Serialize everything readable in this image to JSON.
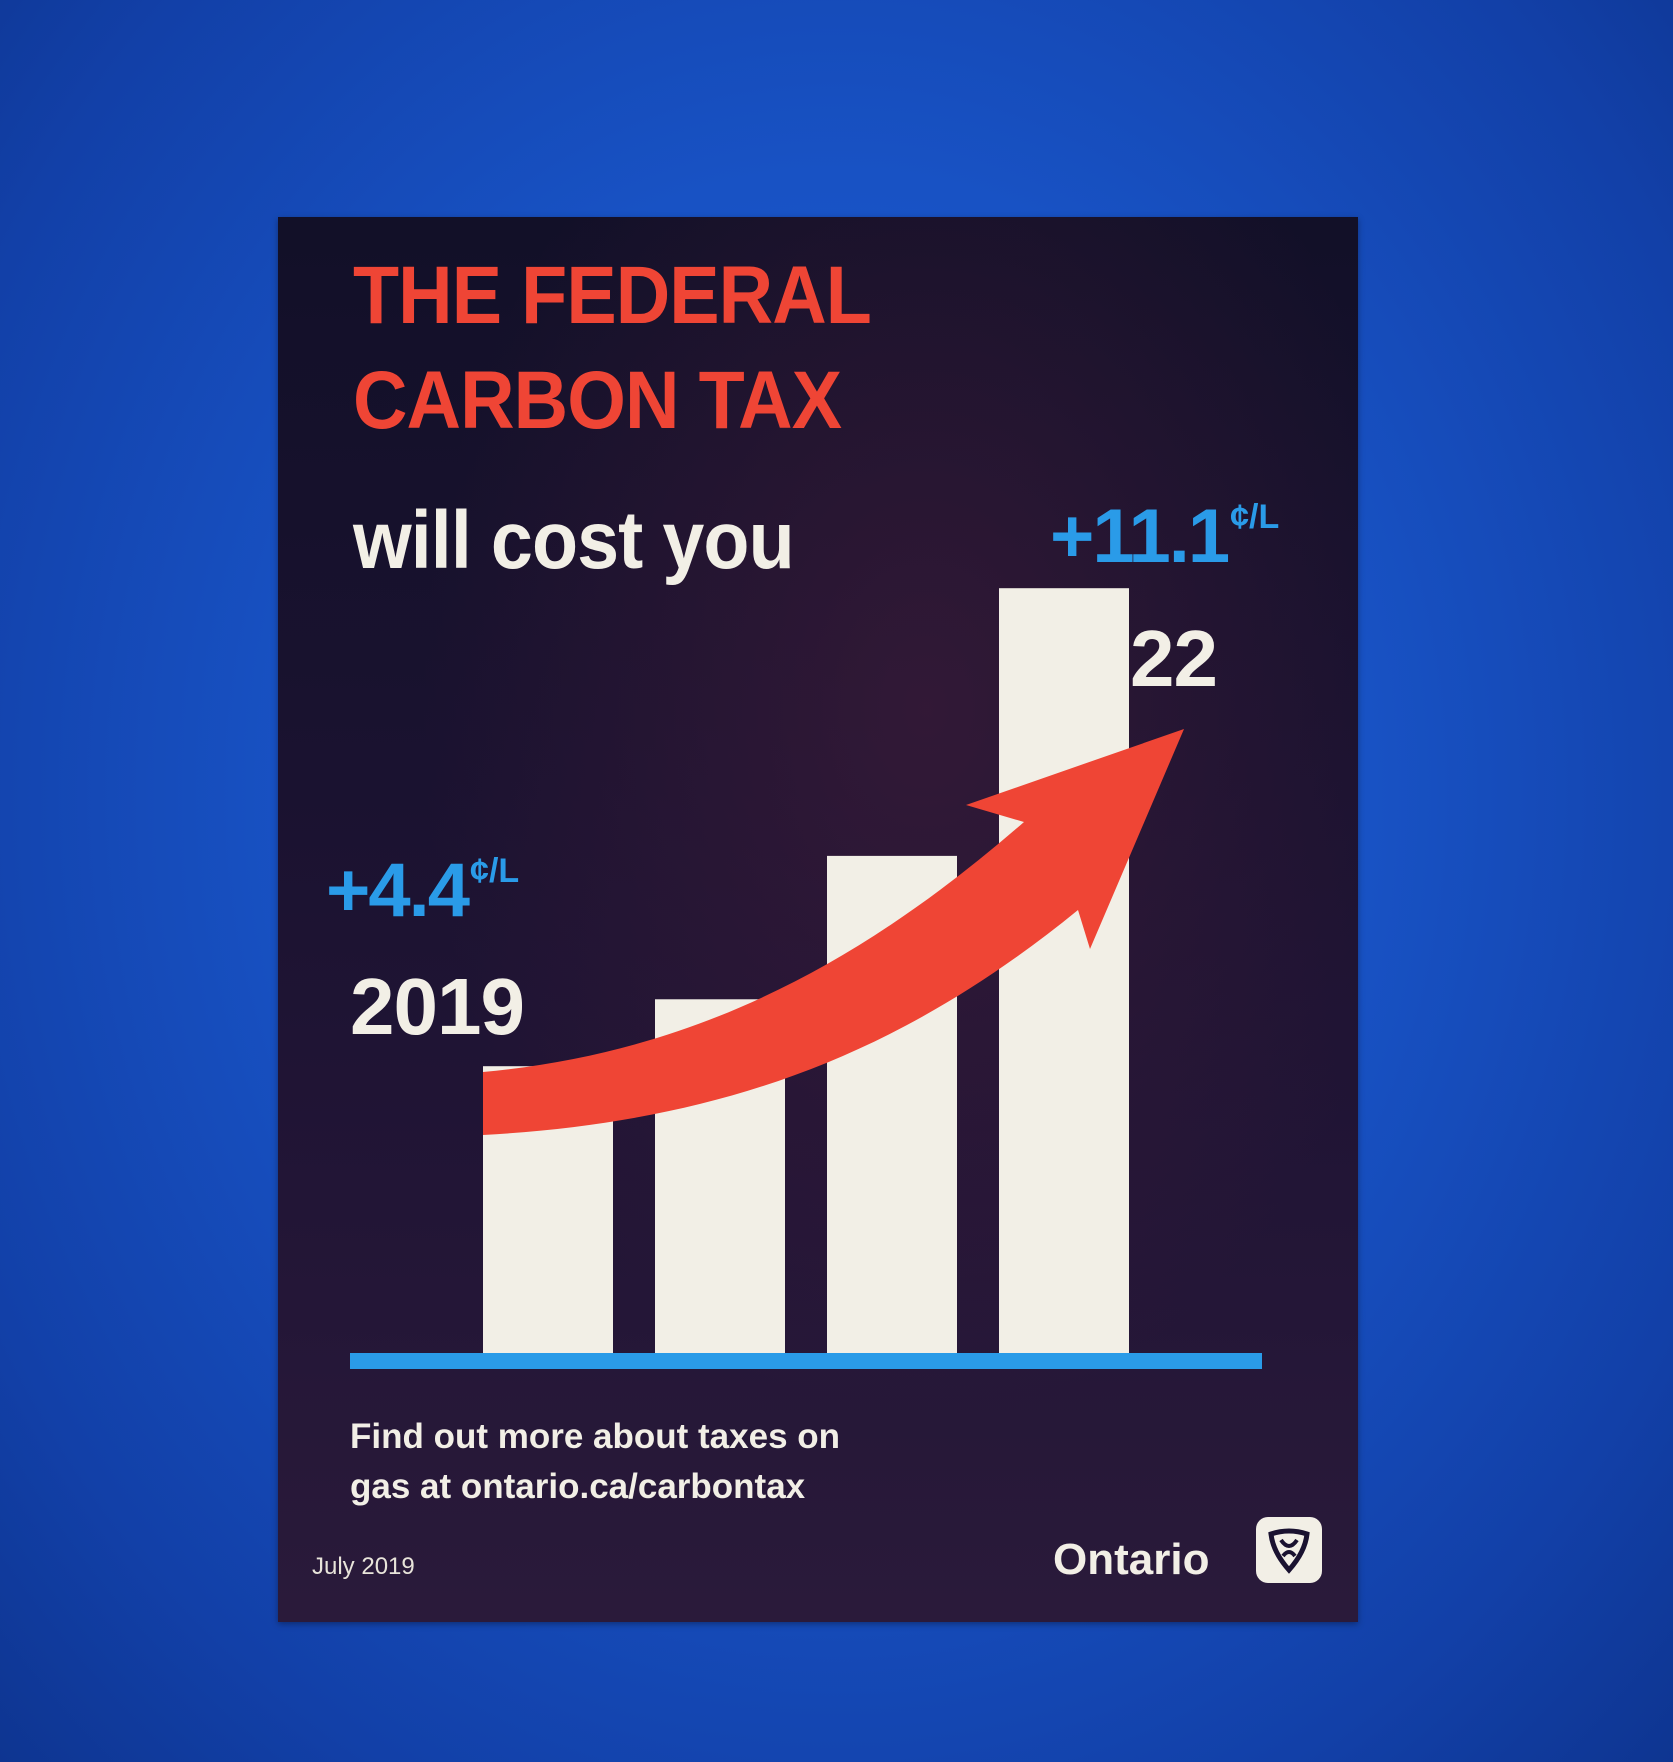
{
  "poster": {
    "headline_line1": "THE FEDERAL",
    "headline_line2": "CARBON TAX",
    "headline_line3": "will cost you",
    "start": {
      "amount": "+4.4",
      "unit": "¢/L",
      "year": "2019"
    },
    "end": {
      "amount": "+11.1",
      "unit": "¢/L",
      "year": "2022"
    },
    "footer_line1": "Find out more about taxes on",
    "footer_line2": "gas at ontario.ca/carbontax",
    "date": "July 2019",
    "brand": "Ontario"
  },
  "chart_data": {
    "type": "bar",
    "categories": [
      "",
      "",
      "",
      ""
    ],
    "values": [
      0.3,
      0.37,
      0.52,
      0.8
    ],
    "note": "relative bar heights"
  },
  "colors": {
    "background": "#1a52c4",
    "poster": "#1a1230",
    "headline_red": "#ef4535",
    "value_blue": "#2a9be8",
    "bars": "#f2efe6",
    "arrow": "#ef4535",
    "baseline": "#2a9be8"
  },
  "icons": {
    "logo": "trillium-logo-icon",
    "arrow": "upward-trend-arrow-icon"
  }
}
